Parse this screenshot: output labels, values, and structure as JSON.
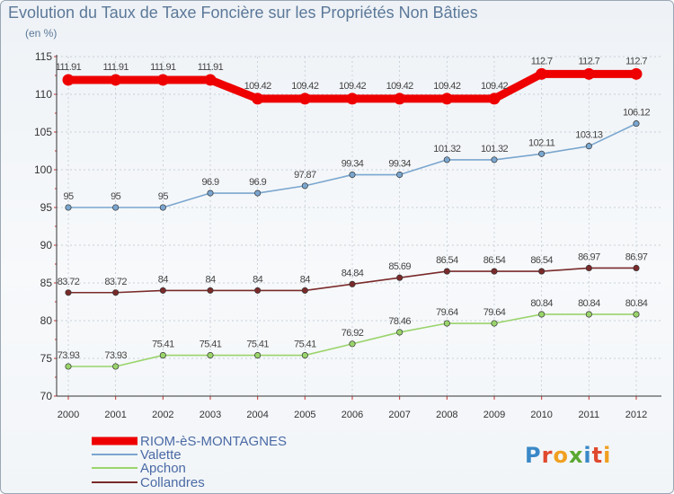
{
  "header": {
    "title": "Evolution du Taux de Taxe Foncière sur les Propriétés Non Bâties",
    "subtitle": "(en %)"
  },
  "brand": {
    "logo_text": "Proxiti"
  },
  "chart_data": {
    "type": "line",
    "title": "Evolution du Taux de Taxe Foncière sur les Propriétés Non Bâties",
    "subtitle": "(en %)",
    "xlabel": "",
    "ylabel": "",
    "ylim": [
      70,
      115
    ],
    "yticks": [
      70,
      75,
      80,
      85,
      90,
      95,
      100,
      105,
      110,
      115
    ],
    "x": [
      "2000",
      "2001",
      "2002",
      "2003",
      "2004",
      "2005",
      "2006",
      "2007",
      "2008",
      "2009",
      "2010",
      "2011",
      "2012"
    ],
    "grid": true,
    "legend_position": "bottom-left",
    "series": [
      {
        "name": "RIOM-èS-MONTAGNES",
        "color": "#ee0000",
        "values": [
          111.91,
          111.91,
          111.91,
          111.91,
          109.42,
          109.42,
          109.42,
          109.42,
          109.42,
          109.42,
          112.7,
          112.7,
          112.7
        ],
        "labels": [
          "111.91",
          "111.91",
          "111.91",
          "111.91",
          "109.42",
          "109.42",
          "109.42",
          "109.42",
          "109.42",
          "109.42",
          "112.7",
          "112.7",
          "112.7"
        ]
      },
      {
        "name": "Valette",
        "color": "#7aa6cf",
        "values": [
          95,
          95,
          95,
          96.9,
          96.9,
          97.87,
          99.34,
          99.34,
          101.32,
          101.32,
          102.11,
          103.13,
          106.12
        ],
        "labels": [
          "95",
          "95",
          "95",
          "96.9",
          "96.9",
          "97.87",
          "99.34",
          "99.34",
          "101.32",
          "101.32",
          "102.11",
          "103.13",
          "106.12"
        ]
      },
      {
        "name": "Apchon",
        "color": "#9ad46b",
        "values": [
          73.93,
          73.93,
          75.41,
          75.41,
          75.41,
          75.41,
          76.92,
          78.46,
          79.64,
          79.64,
          80.84,
          80.84,
          80.84
        ],
        "labels": [
          "73.93",
          "73.93",
          "75.41",
          "75.41",
          "75.41",
          "75.41",
          "76.92",
          "78.46",
          "79.64",
          "79.64",
          "80.84",
          "80.84",
          "80.84"
        ]
      },
      {
        "name": "Collandres",
        "color": "#7a2a2a",
        "values": [
          83.72,
          83.72,
          84,
          84,
          84,
          84,
          84.84,
          85.69,
          86.54,
          86.54,
          86.54,
          86.97,
          86.97
        ],
        "labels": [
          "83.72",
          "83.72",
          "84",
          "84",
          "84",
          "84",
          "84.84",
          "85.69",
          "86.54",
          "86.54",
          "86.54",
          "86.97",
          "86.97"
        ]
      }
    ]
  }
}
